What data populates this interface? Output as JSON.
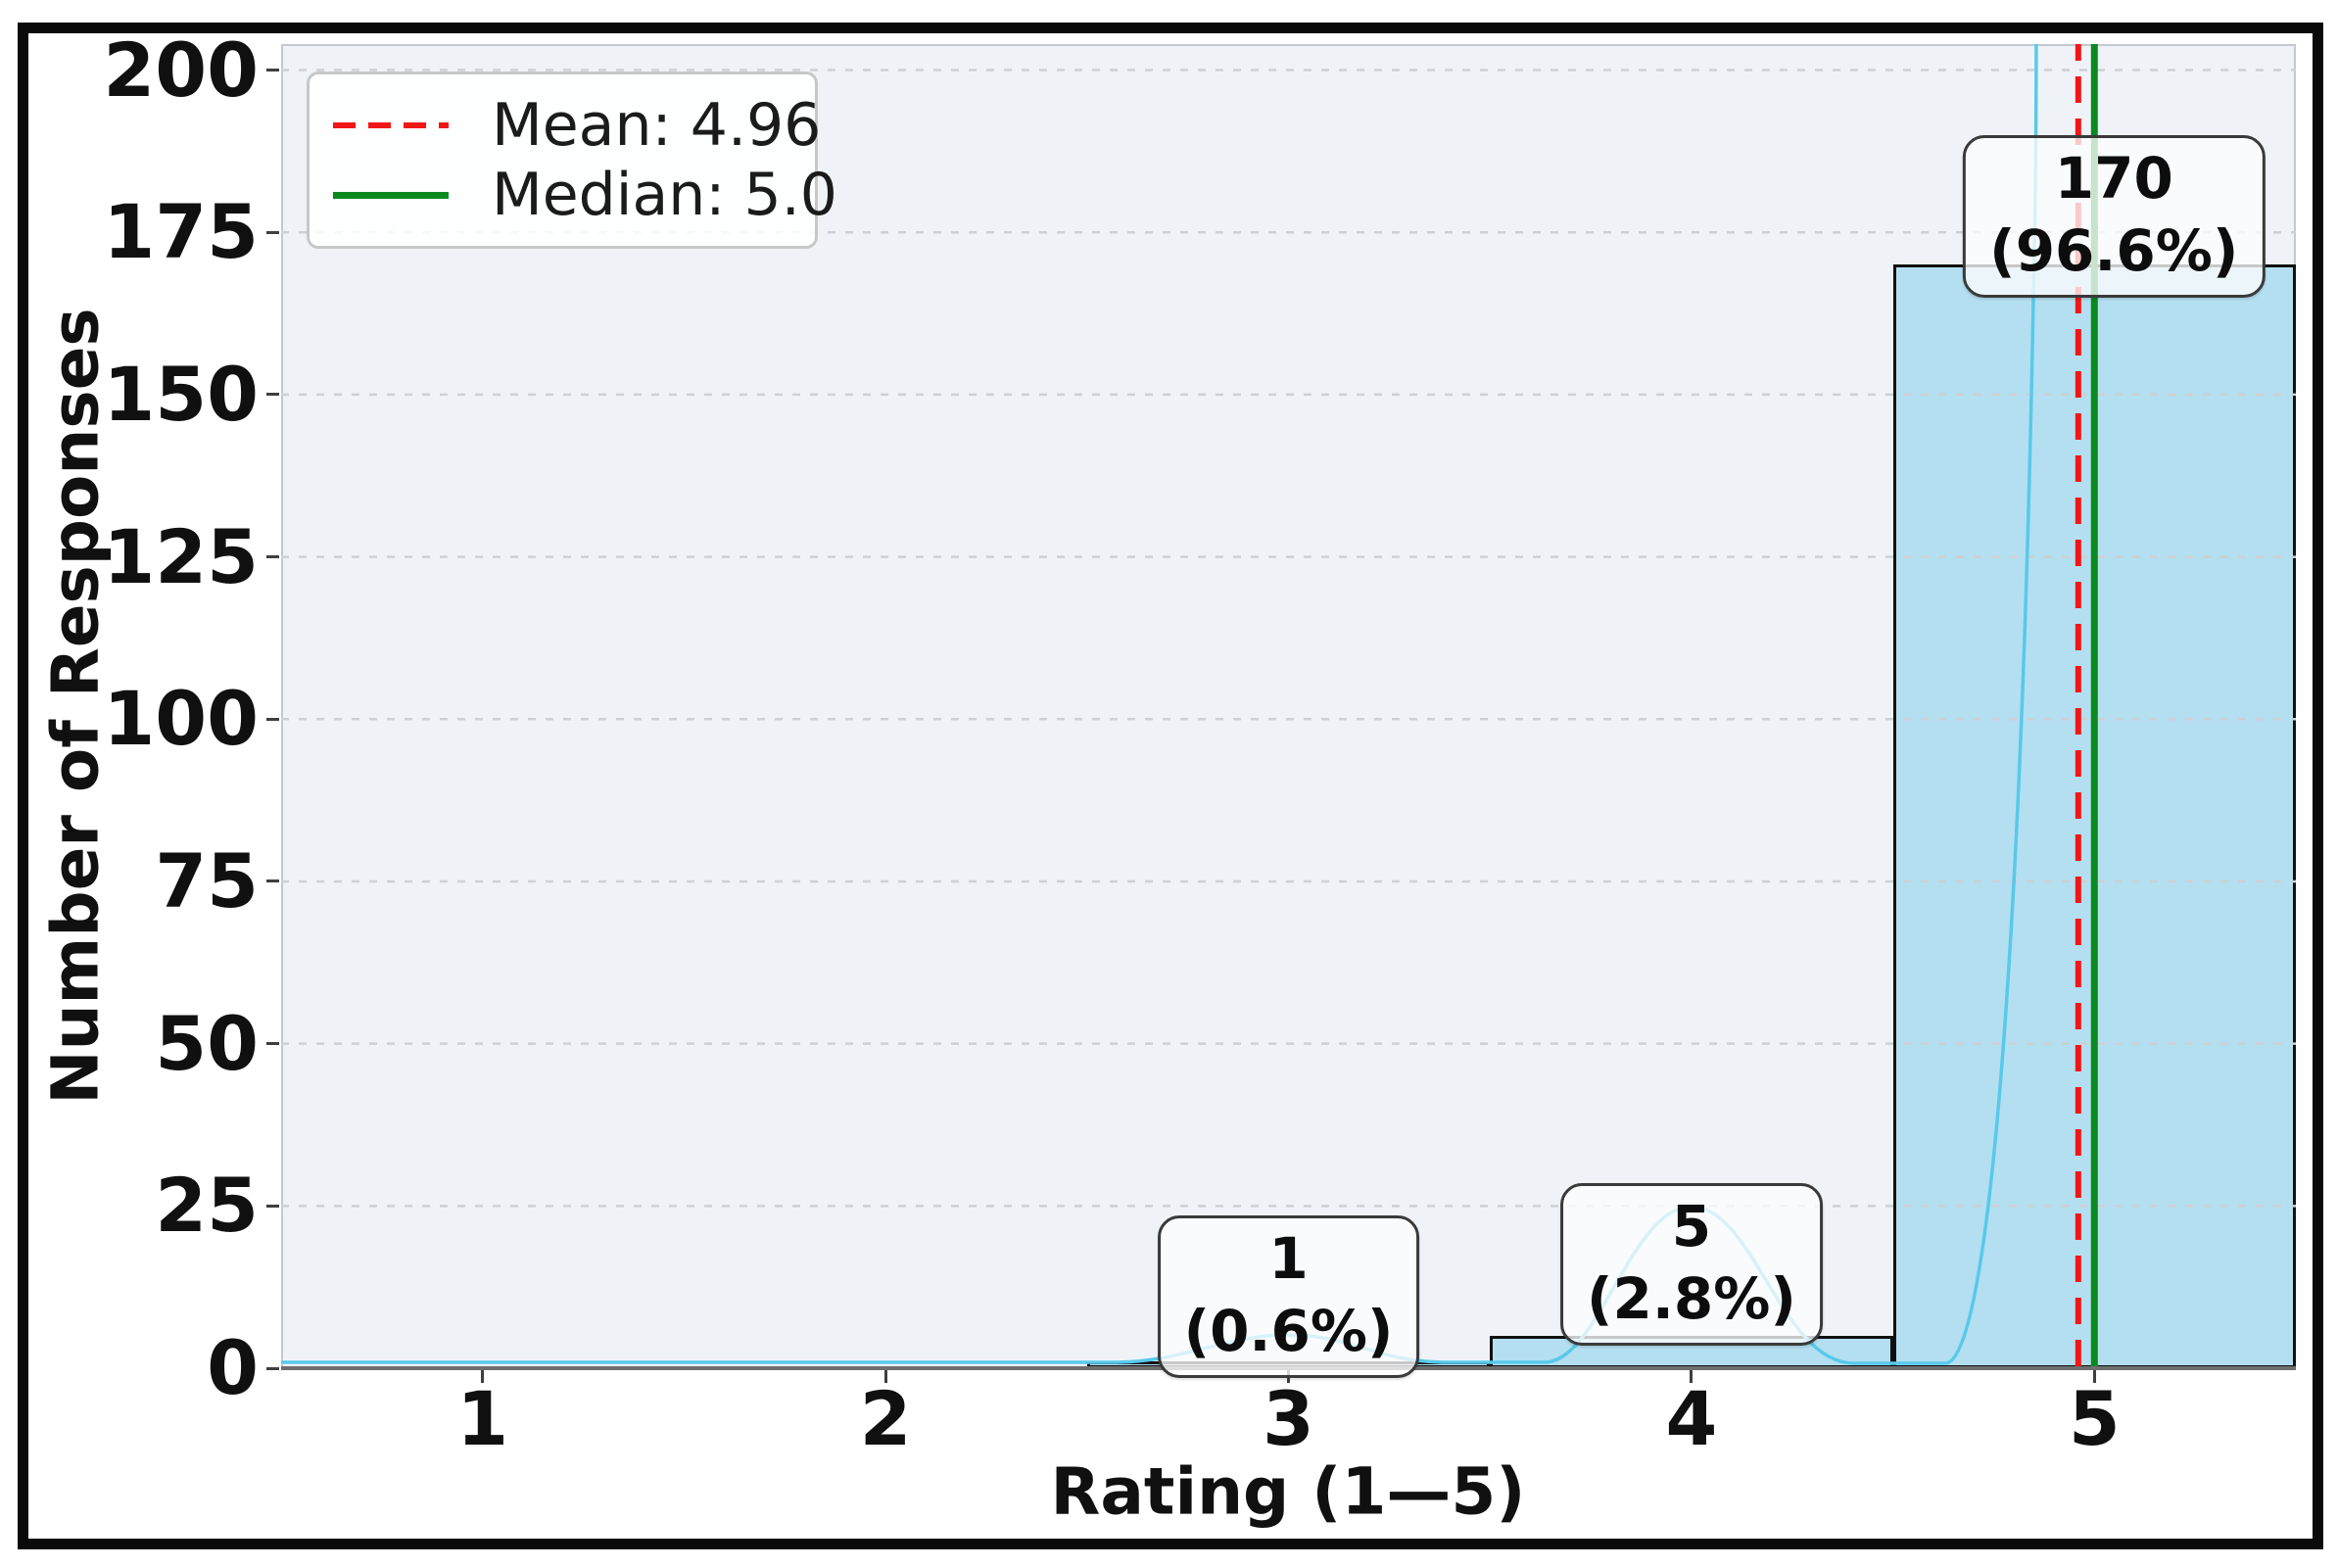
{
  "chart_data": {
    "type": "bar",
    "variant": "histogram_with_kde",
    "title": "",
    "xlabel": "Rating (1—5)",
    "ylabel": "Number of Responses",
    "categories": [
      1,
      2,
      3,
      4,
      5
    ],
    "values": [
      0,
      0,
      1,
      5,
      170
    ],
    "xticks": [
      "1",
      "2",
      "3",
      "4",
      "5"
    ],
    "yticks": [
      "0",
      "25",
      "50",
      "75",
      "100",
      "125",
      "150",
      "175",
      "200"
    ],
    "ylim": [
      0,
      204
    ],
    "xlim": [
      0.5,
      5.5
    ],
    "grid": "horizontal-dashed",
    "mean_value": 4.96,
    "median_value": 5.0,
    "kde_overlay": true,
    "legend": {
      "position": "upper-left",
      "items": [
        {
          "label": "Mean: 4.96",
          "style": "dashed",
          "color": "#f21717"
        },
        {
          "label": "Median: 5.0",
          "style": "solid",
          "color": "#0a8a1e"
        }
      ]
    },
    "annotations": [
      {
        "category": 3,
        "count": "1",
        "percent": "(0.6%)"
      },
      {
        "category": 4,
        "count": "5",
        "percent": "(2.8%)"
      },
      {
        "category": 5,
        "count": "170",
        "percent": "(96.6%)"
      }
    ],
    "colors": {
      "bar_fill": "#b3dff0",
      "bar_edge": "#101010",
      "kde_line": "#58c9ea",
      "mean_line": "#f21717",
      "median_line": "#0a8a1e",
      "plot_bg": "#eff3f8",
      "grid_line": "#cdd0d6",
      "figure_border": "#0a0a0a"
    }
  }
}
